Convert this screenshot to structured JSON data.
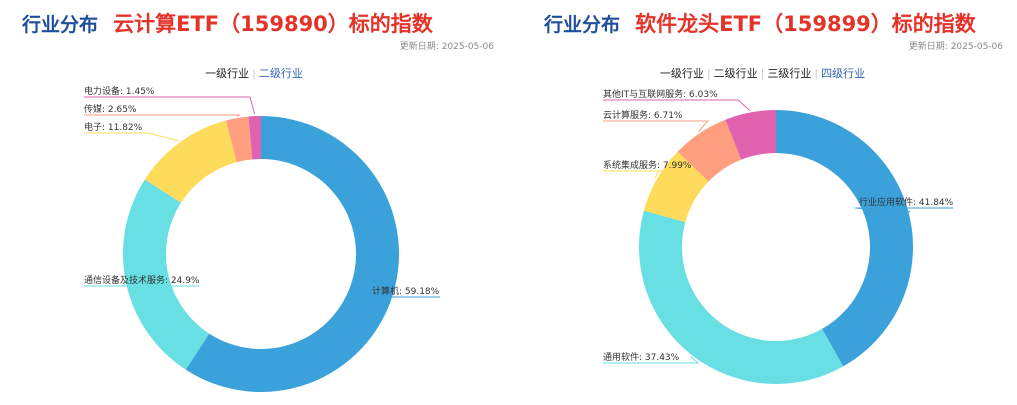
{
  "panels": [
    {
      "section_title": "行业分布",
      "etf_title": "云计算ETF（159890）标的指数",
      "update_text": "更新日期: 2025-05-06",
      "tabs": [
        {
          "label": "一级行业",
          "active": false
        },
        {
          "label": "二级行业",
          "active": true
        }
      ]
    },
    {
      "section_title": "行业分布",
      "etf_title": "软件龙头ETF（159899）标的指数",
      "update_text": "更新日期: 2025-05-06",
      "tabs": [
        {
          "label": "一级行业",
          "active": false
        },
        {
          "label": "二级行业",
          "active": false
        },
        {
          "label": "三级行业",
          "active": false
        },
        {
          "label": "四级行业",
          "active": true
        }
      ]
    }
  ],
  "chart_data": [
    {
      "type": "pie",
      "variant": "donut",
      "series": [
        {
          "name": "计算机",
          "value": 59.18,
          "label": "计算机: 59.18%",
          "color": "#3ba1da"
        },
        {
          "name": "通信设备及技术服务",
          "value": 24.9,
          "label": "通信设备及技术服务: 24.9%",
          "color": "#67dfe3"
        },
        {
          "name": "电子",
          "value": 11.82,
          "label": "电子: 11.82%",
          "color": "#ffdb5c"
        },
        {
          "name": "传媒",
          "value": 2.65,
          "label": "传媒: 2.65%",
          "color": "#ff9f7f"
        },
        {
          "name": "电力设备",
          "value": 1.45,
          "label": "电力设备: 1.45%",
          "color": "#e062ae"
        }
      ]
    },
    {
      "type": "pie",
      "variant": "donut",
      "series": [
        {
          "name": "行业应用软件",
          "value": 41.84,
          "label": "行业应用软件: 41.84%",
          "color": "#3ba1da"
        },
        {
          "name": "通用软件",
          "value": 37.43,
          "label": "通用软件: 37.43%",
          "color": "#67dfe3"
        },
        {
          "name": "系统集成服务",
          "value": 7.99,
          "label": "系统集成服务: 7.99%",
          "color": "#ffdb5c"
        },
        {
          "name": "云计算服务",
          "value": 6.71,
          "label": "云计算服务: 6.71%",
          "color": "#ff9f7f"
        },
        {
          "name": "其他IT与互联网服务",
          "value": 6.03,
          "label": "其他IT与互联网服务: 6.03%",
          "color": "#e062ae"
        }
      ]
    }
  ]
}
